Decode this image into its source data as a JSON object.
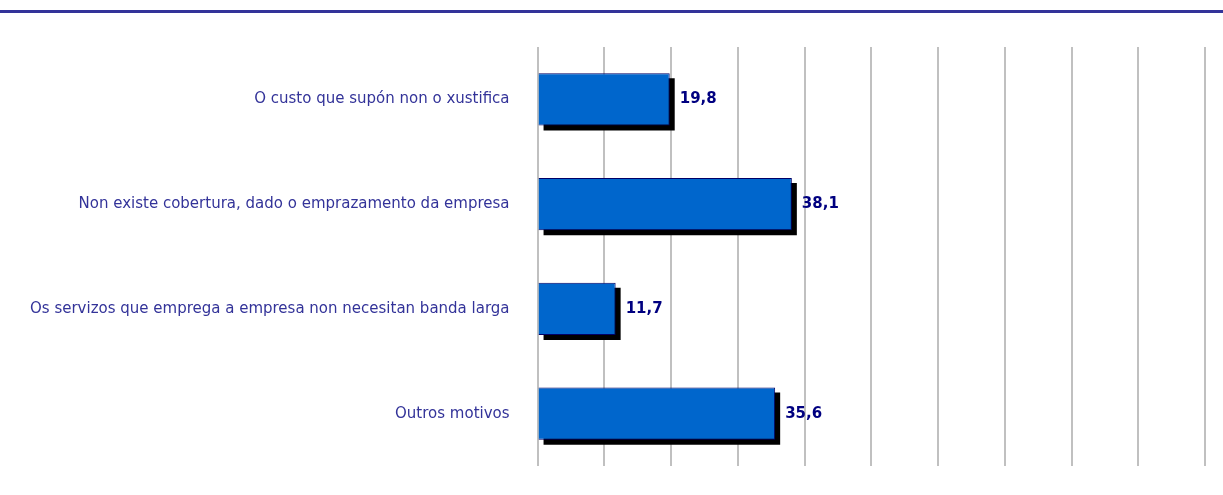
{
  "chart_data": {
    "type": "bar",
    "orientation": "horizontal",
    "categories": [
      "O custo que supón non o xustifica",
      "Non existe cobertura, dado o emprazamento da empresa",
      "Os servizos que emprega a empresa non necesitan banda larga",
      "Outros motivos"
    ],
    "values": [
      19.8,
      38.1,
      11.7,
      35.6
    ],
    "value_labels": [
      "19,8",
      "38,1",
      "11,7",
      "35,6"
    ],
    "color": "#0066cc",
    "xlim": [
      0,
      100
    ],
    "grid": "x",
    "tick_labels": "y",
    "legend": false
  }
}
